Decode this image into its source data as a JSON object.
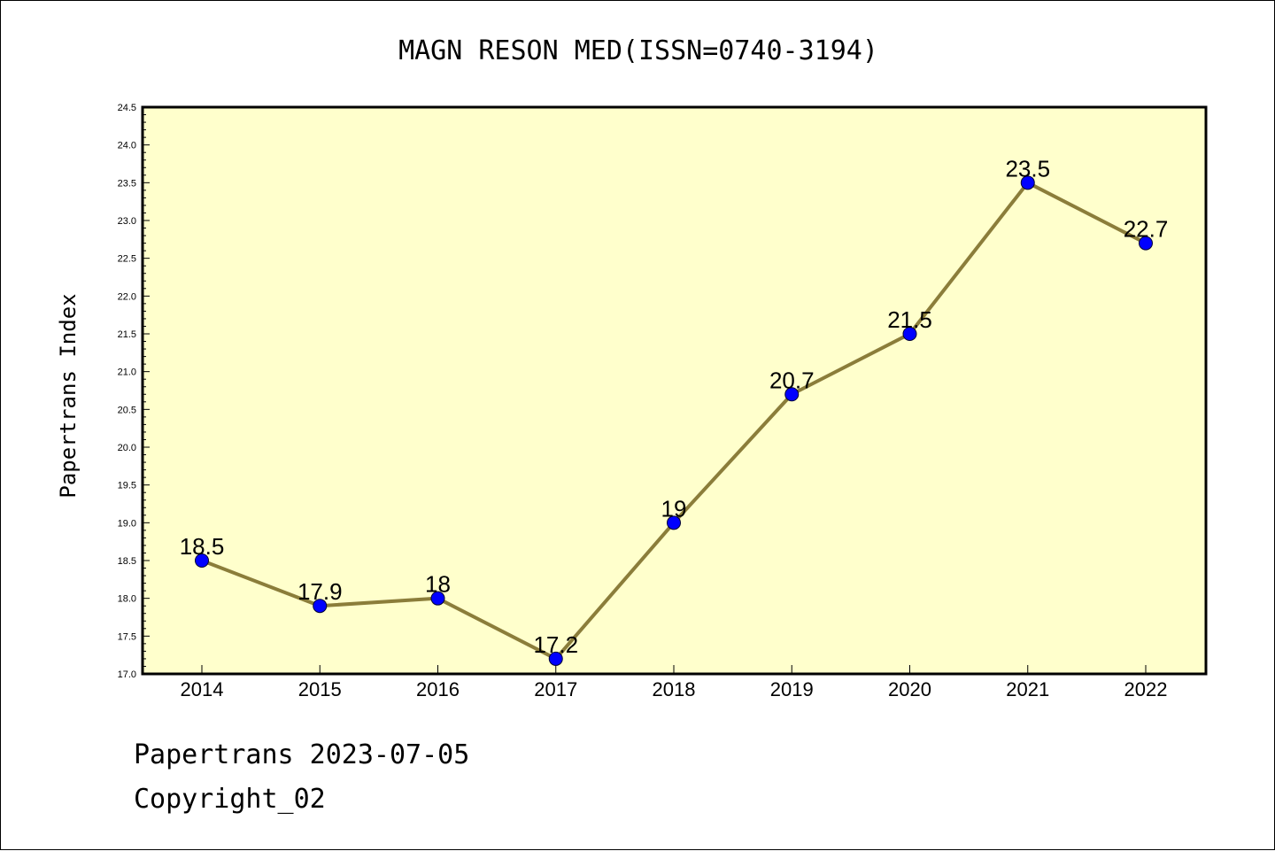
{
  "chart_data": {
    "type": "line",
    "title": "MAGN RESON MED(ISSN=0740-3194)",
    "xlabel": "",
    "ylabel": "Papertrans Index",
    "categories": [
      "2014",
      "2015",
      "2016",
      "2017",
      "2018",
      "2019",
      "2020",
      "2021",
      "2022"
    ],
    "series": [
      {
        "values": [
          18.5,
          17.9,
          18,
          17.2,
          19,
          20.7,
          21.5,
          23.5,
          22.7
        ],
        "data_labels": [
          "18.5",
          "17.9",
          "18",
          "17.2",
          "19",
          "20.7",
          "21.5",
          "23.5",
          "22.7"
        ]
      }
    ],
    "ylim": [
      17.0,
      24.5
    ],
    "yticks": [
      "17.0",
      "17.5",
      "18.0",
      "18.5",
      "19.0",
      "19.5",
      "20.0",
      "20.5",
      "21.0",
      "21.5",
      "22.0",
      "22.5",
      "23.0",
      "23.5",
      "24.0",
      "24.5"
    ],
    "grid": false,
    "colors": {
      "plot_background": "#ffffcc",
      "line": "#8b7d3a",
      "marker": "#0000ff"
    }
  },
  "footer": {
    "line1": "Papertrans 2023-07-05",
    "line2": "Copyright_02"
  }
}
